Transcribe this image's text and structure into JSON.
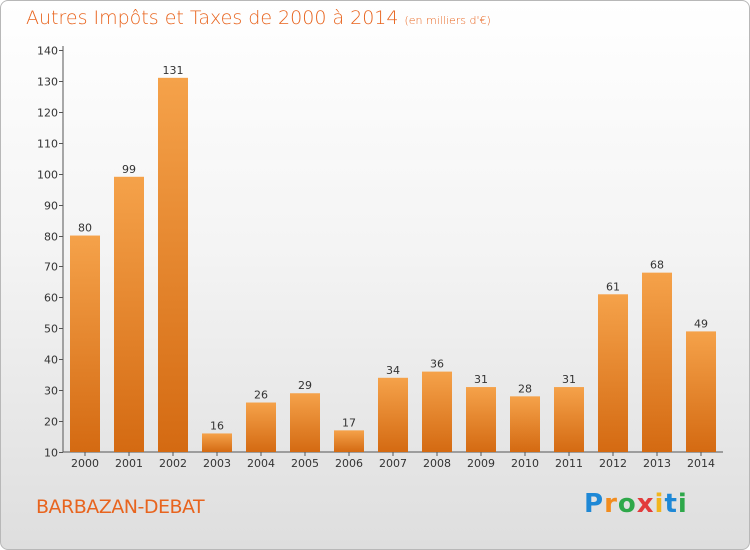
{
  "header": {
    "title": "Autres Impôts et Taxes de 2000 à 2014",
    "subtitle": "(en milliers d'€)"
  },
  "footer": {
    "place": "BARBAZAN-DEBAT",
    "logo_letters": [
      "P",
      "r",
      "o",
      "x",
      "i",
      "t",
      "i"
    ],
    "logo_colors": [
      "#1e88d6",
      "#f28c1e",
      "#2ea84a",
      "#e23c3c",
      "#f2b51e",
      "#1e88d6",
      "#2ea84a"
    ]
  },
  "chart_data": {
    "type": "bar",
    "title": "Autres Impôts et Taxes de 2000 à 2014",
    "subtitle": "(en milliers d'€)",
    "categories": [
      "2000",
      "2001",
      "2002",
      "2003",
      "2004",
      "2005",
      "2006",
      "2007",
      "2008",
      "2009",
      "2010",
      "2011",
      "2012",
      "2013",
      "2014"
    ],
    "values": [
      80,
      99,
      131,
      16,
      26,
      29,
      17,
      34,
      36,
      31,
      28,
      31,
      61,
      68,
      49
    ],
    "data_labels": [
      "80",
      "99",
      "131",
      "16",
      "26",
      "29",
      "17",
      "34",
      "36",
      "31",
      "28",
      "31",
      "61",
      "68",
      "49"
    ],
    "yticks": [
      10,
      20,
      30,
      40,
      50,
      60,
      70,
      80,
      90,
      100,
      110,
      120,
      130,
      140
    ],
    "ylim": [
      10,
      140
    ],
    "grid": false,
    "bar_color_top": "#f5a24a",
    "bar_color_bottom": "#d46a12",
    "text_color": "#e8641e"
  }
}
